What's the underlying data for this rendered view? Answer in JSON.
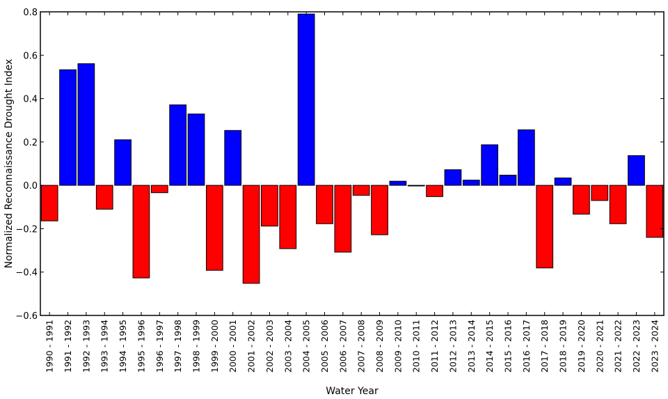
{
  "chart_data": {
    "type": "bar",
    "title": "",
    "xlabel": "Water Year",
    "ylabel": "Normalized Reconnaissance Drought Index",
    "ylim": [
      -0.6,
      0.8
    ],
    "yticks": [
      -0.6,
      -0.4,
      -0.2,
      0.0,
      0.2,
      0.4,
      0.6,
      0.8
    ],
    "ytick_labels": [
      "−0.6",
      "−0.4",
      "−0.2",
      "0.0",
      "0.2",
      "0.4",
      "0.6",
      "0.8"
    ],
    "grid": false,
    "legend": null,
    "colors": {
      "positive": "#0000ff",
      "negative": "#ff0000",
      "edge": "#000000"
    },
    "categories": [
      "1990 - 1991",
      "1991 - 1992",
      "1992 - 1993",
      "1993 - 1994",
      "1994 - 1995",
      "1995 - 1996",
      "1996 - 1997",
      "1997 - 1998",
      "1998 - 1999",
      "1999 - 2000",
      "2000 - 2001",
      "2001 - 2002",
      "2002 - 2003",
      "2003 - 2004",
      "2004 - 2005",
      "2005 - 2006",
      "2006 - 2007",
      "2007 - 2008",
      "2008 - 2009",
      "2009 - 2010",
      "2010 - 2011",
      "2011 - 2012",
      "2012 - 2013",
      "2013 - 2014",
      "2014 - 2015",
      "2015 - 2016",
      "2016 - 2017",
      "2017 - 2018",
      "2018 - 2019",
      "2019 - 2020",
      "2020 - 2021",
      "2021 - 2022",
      "2022 - 2023",
      "2023 - 2024"
    ],
    "values": [
      -0.164,
      0.533,
      0.561,
      -0.11,
      0.21,
      -0.427,
      -0.034,
      0.371,
      0.329,
      -0.392,
      0.253,
      -0.452,
      -0.188,
      -0.292,
      0.79,
      -0.177,
      -0.308,
      -0.046,
      -0.228,
      0.019,
      -0.003,
      -0.052,
      0.072,
      0.024,
      0.187,
      0.047,
      0.256,
      -0.381,
      0.034,
      -0.133,
      -0.07,
      -0.177,
      0.137,
      -0.24
    ]
  }
}
